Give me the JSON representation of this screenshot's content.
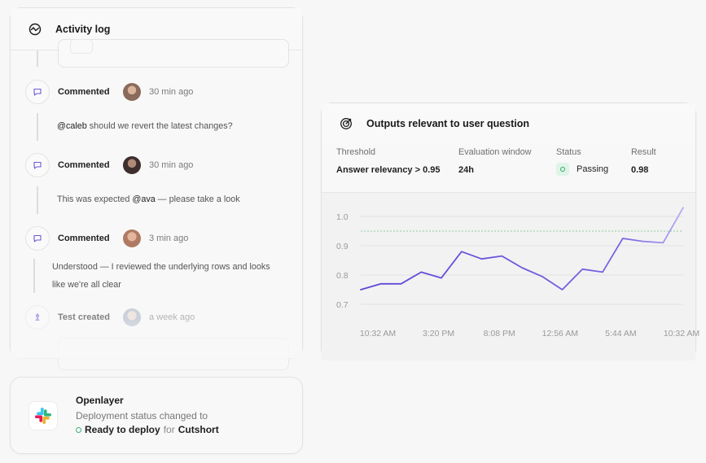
{
  "activity": {
    "title": "Activity log",
    "icon": "activity-pulse-icon",
    "events": [
      {
        "title": "Commented",
        "time": "30 min ago",
        "avatar_color": "#8a6a5a"
      },
      {
        "title": "Commented",
        "time": "30 min ago",
        "avatar_color": "#4a3a3a"
      },
      {
        "title": "Commented",
        "time": "3 min ago",
        "avatar_color": "#c08a70"
      },
      {
        "title": "Test created",
        "time": "a week ago",
        "avatar_color": "#a8b0c0"
      }
    ],
    "comments": [
      {
        "mention": "@caleb",
        "text": " should we revert the latest changes?"
      },
      {
        "prefix": "This was expected ",
        "mention": "@ava",
        "suffix": " — please take a look"
      },
      {
        "line1": "Understood — I reviewed the underlying rows and looks",
        "line2": "like we're all clear"
      }
    ],
    "accent": "#6b5bd6"
  },
  "notification": {
    "app": "Openlayer",
    "line1": "Deployment status changed to",
    "status": "Ready to deploy",
    "for": "for",
    "project": "Cutshort",
    "status_color": "#3bb273"
  },
  "metric": {
    "title": "Outputs relevant to user question",
    "stats": [
      {
        "label": "Threshold",
        "value": "Answer relevancy > 0.95"
      },
      {
        "label": "Evaluation window",
        "value": "24h"
      },
      {
        "label": "Status",
        "value": "Passing"
      },
      {
        "label": "Result",
        "value": "0.98"
      }
    ]
  },
  "chart_data": {
    "type": "line",
    "x_tick_labels": [
      "10:32 AM",
      "3:20 PM",
      "8:08 PM",
      "12:56 AM",
      "5:44 AM",
      "10:32 AM"
    ],
    "y_ticks": [
      0.7,
      0.8,
      0.9,
      1.0
    ],
    "y_tick_labels": [
      "0.7",
      "0.8",
      "0.9",
      "1.0"
    ],
    "ylim": [
      0.7,
      1.0
    ],
    "threshold": 0.95,
    "grid": true,
    "series": [
      {
        "values": [
          0.75,
          0.77,
          0.77,
          0.81,
          0.79,
          0.88,
          0.855,
          0.865,
          0.825,
          0.795,
          0.75,
          0.82,
          0.81,
          0.925,
          0.915,
          0.91,
          1.03
        ],
        "color": "#5b47d6"
      }
    ]
  }
}
